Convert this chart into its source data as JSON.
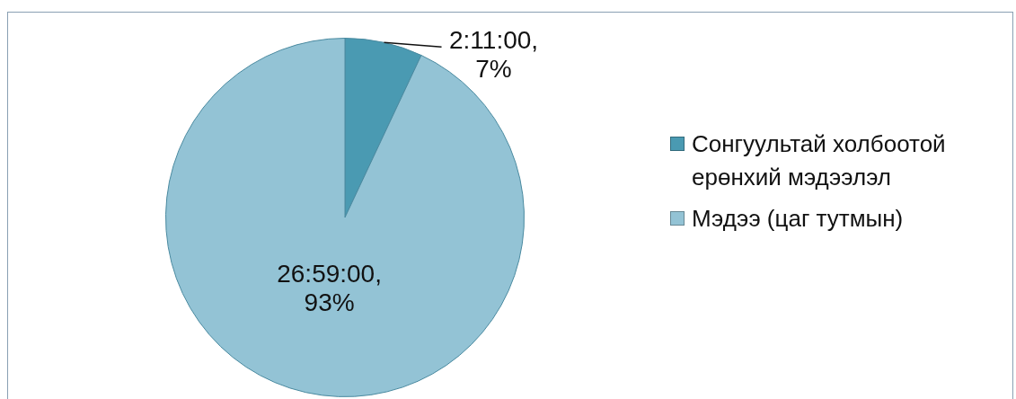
{
  "chart_data": {
    "type": "pie",
    "categories": [
      "Сонгуультай холбоотой ерөнхий мэдээлэл",
      "Мэдээ (цаг тутмын)"
    ],
    "values": [
      7,
      93
    ],
    "colors": [
      "#4a9ab2",
      "#93c3d5"
    ],
    "value_labels": [
      "2:11:00, 7%",
      "26:59:00, 93%"
    ],
    "legend": "right"
  }
}
